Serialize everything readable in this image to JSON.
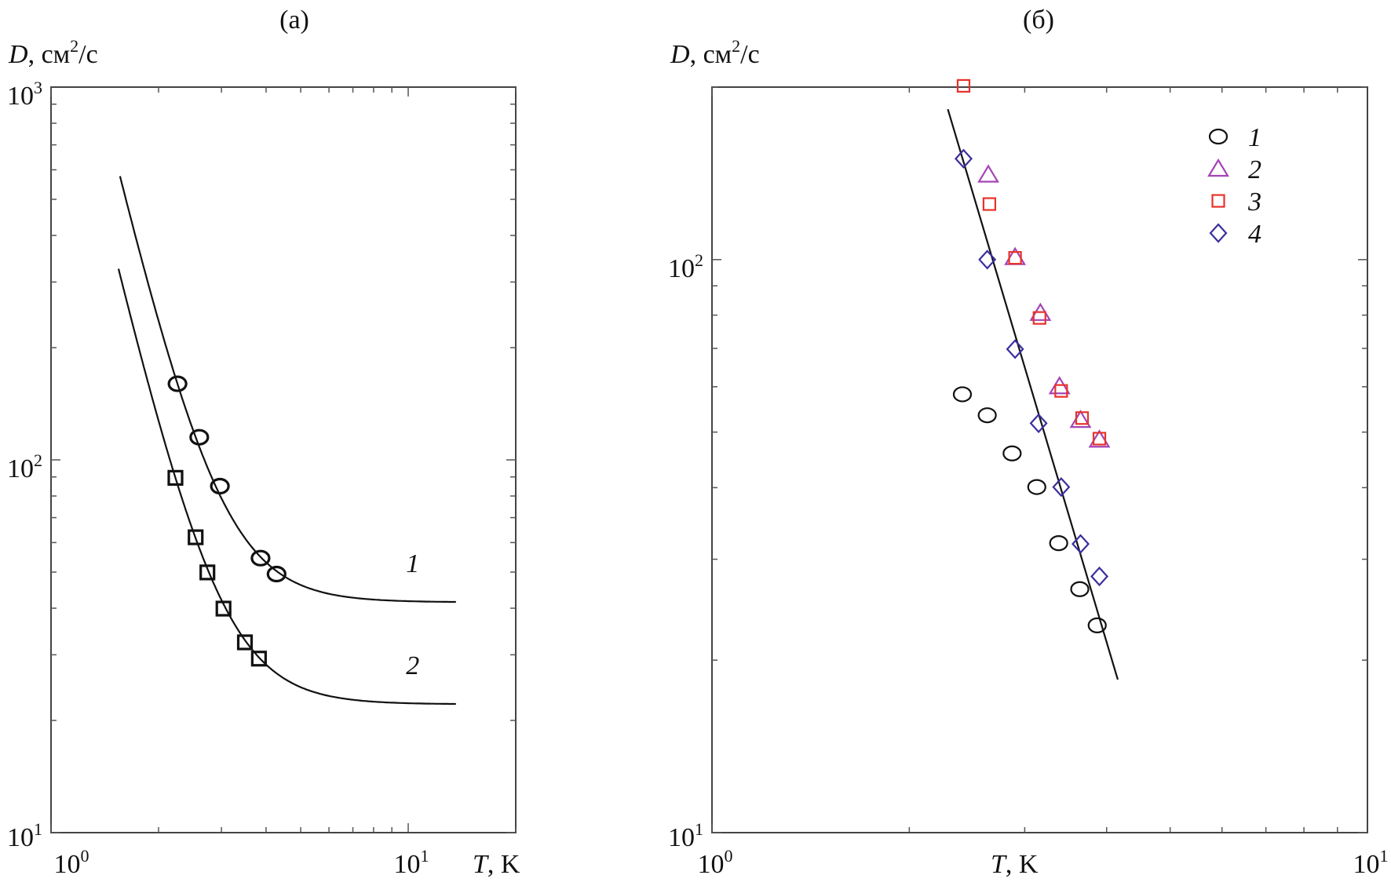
{
  "chart_data": [
    {
      "type": "scatter",
      "panel_label": "(а)",
      "ylabel_var": "D",
      "ylabel_unit": ", см",
      "ylabel_unit_exp": "2",
      "ylabel_unit_tail": "/с",
      "xlabel_var": "T",
      "xlabel_unit": ", K",
      "xscale": "log",
      "yscale": "log",
      "xlim": [
        1,
        20
      ],
      "ylim": [
        10,
        1000
      ],
      "xticks": [
        {
          "value": 1,
          "base": "10",
          "exp": "0"
        },
        {
          "value": 10,
          "base": "10",
          "exp": "1"
        }
      ],
      "yticks": [
        {
          "value": 10,
          "base": "10",
          "exp": "1"
        },
        {
          "value": 100,
          "base": "10",
          "exp": "2"
        },
        {
          "value": 1000,
          "base": "10",
          "exp": "3"
        }
      ],
      "series": [
        {
          "name": "1",
          "marker": "circle",
          "color": "#111111",
          "x": [
            2.26,
            2.6,
            2.97,
            3.86,
            4.28
          ],
          "y": [
            160,
            115,
            85,
            54.5,
            49.4
          ],
          "fit": {
            "A": 41.5,
            "B": 3270,
            "n": 4.07,
            "tmin": 1.56,
            "tmax": 13.6
          },
          "curve_label": "1"
        },
        {
          "name": "2",
          "marker": "square",
          "color": "#111111",
          "x": [
            2.23,
            2.54,
            2.74,
            3.04,
            3.49,
            3.82
          ],
          "y": [
            89.5,
            62,
            49.9,
            39.9,
            32.4,
            29.3
          ],
          "fit": {
            "A": 22.1,
            "B": 1806,
            "n": 4.1,
            "tmin": 1.545,
            "tmax": 13.6
          },
          "curve_label": "2"
        }
      ],
      "legend": null
    },
    {
      "type": "scatter",
      "panel_label": "(б)",
      "ylabel_var": "D",
      "ylabel_unit": ", см",
      "ylabel_unit_exp": "2",
      "ylabel_unit_tail": "/с",
      "xlabel_var": "T",
      "xlabel_unit": ", K",
      "xscale": "log",
      "yscale": "log",
      "xlim": [
        1,
        10
      ],
      "ylim": [
        10,
        200
      ],
      "xticks": [
        {
          "value": 1,
          "base": "10",
          "exp": "0"
        },
        {
          "value": 10,
          "base": "10",
          "exp": "1"
        }
      ],
      "yticks": [
        {
          "value": 10,
          "base": "10",
          "exp": "1"
        },
        {
          "value": 100,
          "base": "10",
          "exp": "2"
        }
      ],
      "series": [
        {
          "name": "1",
          "marker": "circle",
          "color": "#111111",
          "x": [
            2.41,
            2.63,
            2.87,
            3.13,
            3.38,
            3.64,
            3.87
          ],
          "y": [
            58.2,
            53.5,
            45.9,
            40.1,
            32.0,
            26.6,
            23.0
          ]
        },
        {
          "name": "2",
          "marker": "triangle",
          "color": "#a445b5",
          "x": [
            2.64,
            2.9,
            3.17,
            3.39,
            3.65,
            3.9
          ],
          "y": [
            140.7,
            101,
            80.7,
            60.1,
            52.5,
            48.5
          ]
        },
        {
          "name": "3",
          "marker": "square",
          "color": "#e8322a",
          "x": [
            2.42,
            2.65,
            2.9,
            3.16,
            3.41,
            3.67,
            3.9
          ],
          "y": [
            201,
            125,
            100.7,
            79.1,
            59.0,
            52.9,
            48.7
          ]
        },
        {
          "name": "4",
          "marker": "diamond",
          "color": "#3a2f9e",
          "x": [
            2.42,
            2.63,
            2.9,
            3.15,
            3.41,
            3.65,
            3.9
          ],
          "y": [
            150,
            100,
            69.8,
            51.8,
            40.1,
            31.9,
            28.0
          ]
        }
      ],
      "fit_line": {
        "x": [
          2.29,
          4.16
        ],
        "y": [
          183,
          18.5
        ]
      },
      "legend": "top-right"
    }
  ]
}
